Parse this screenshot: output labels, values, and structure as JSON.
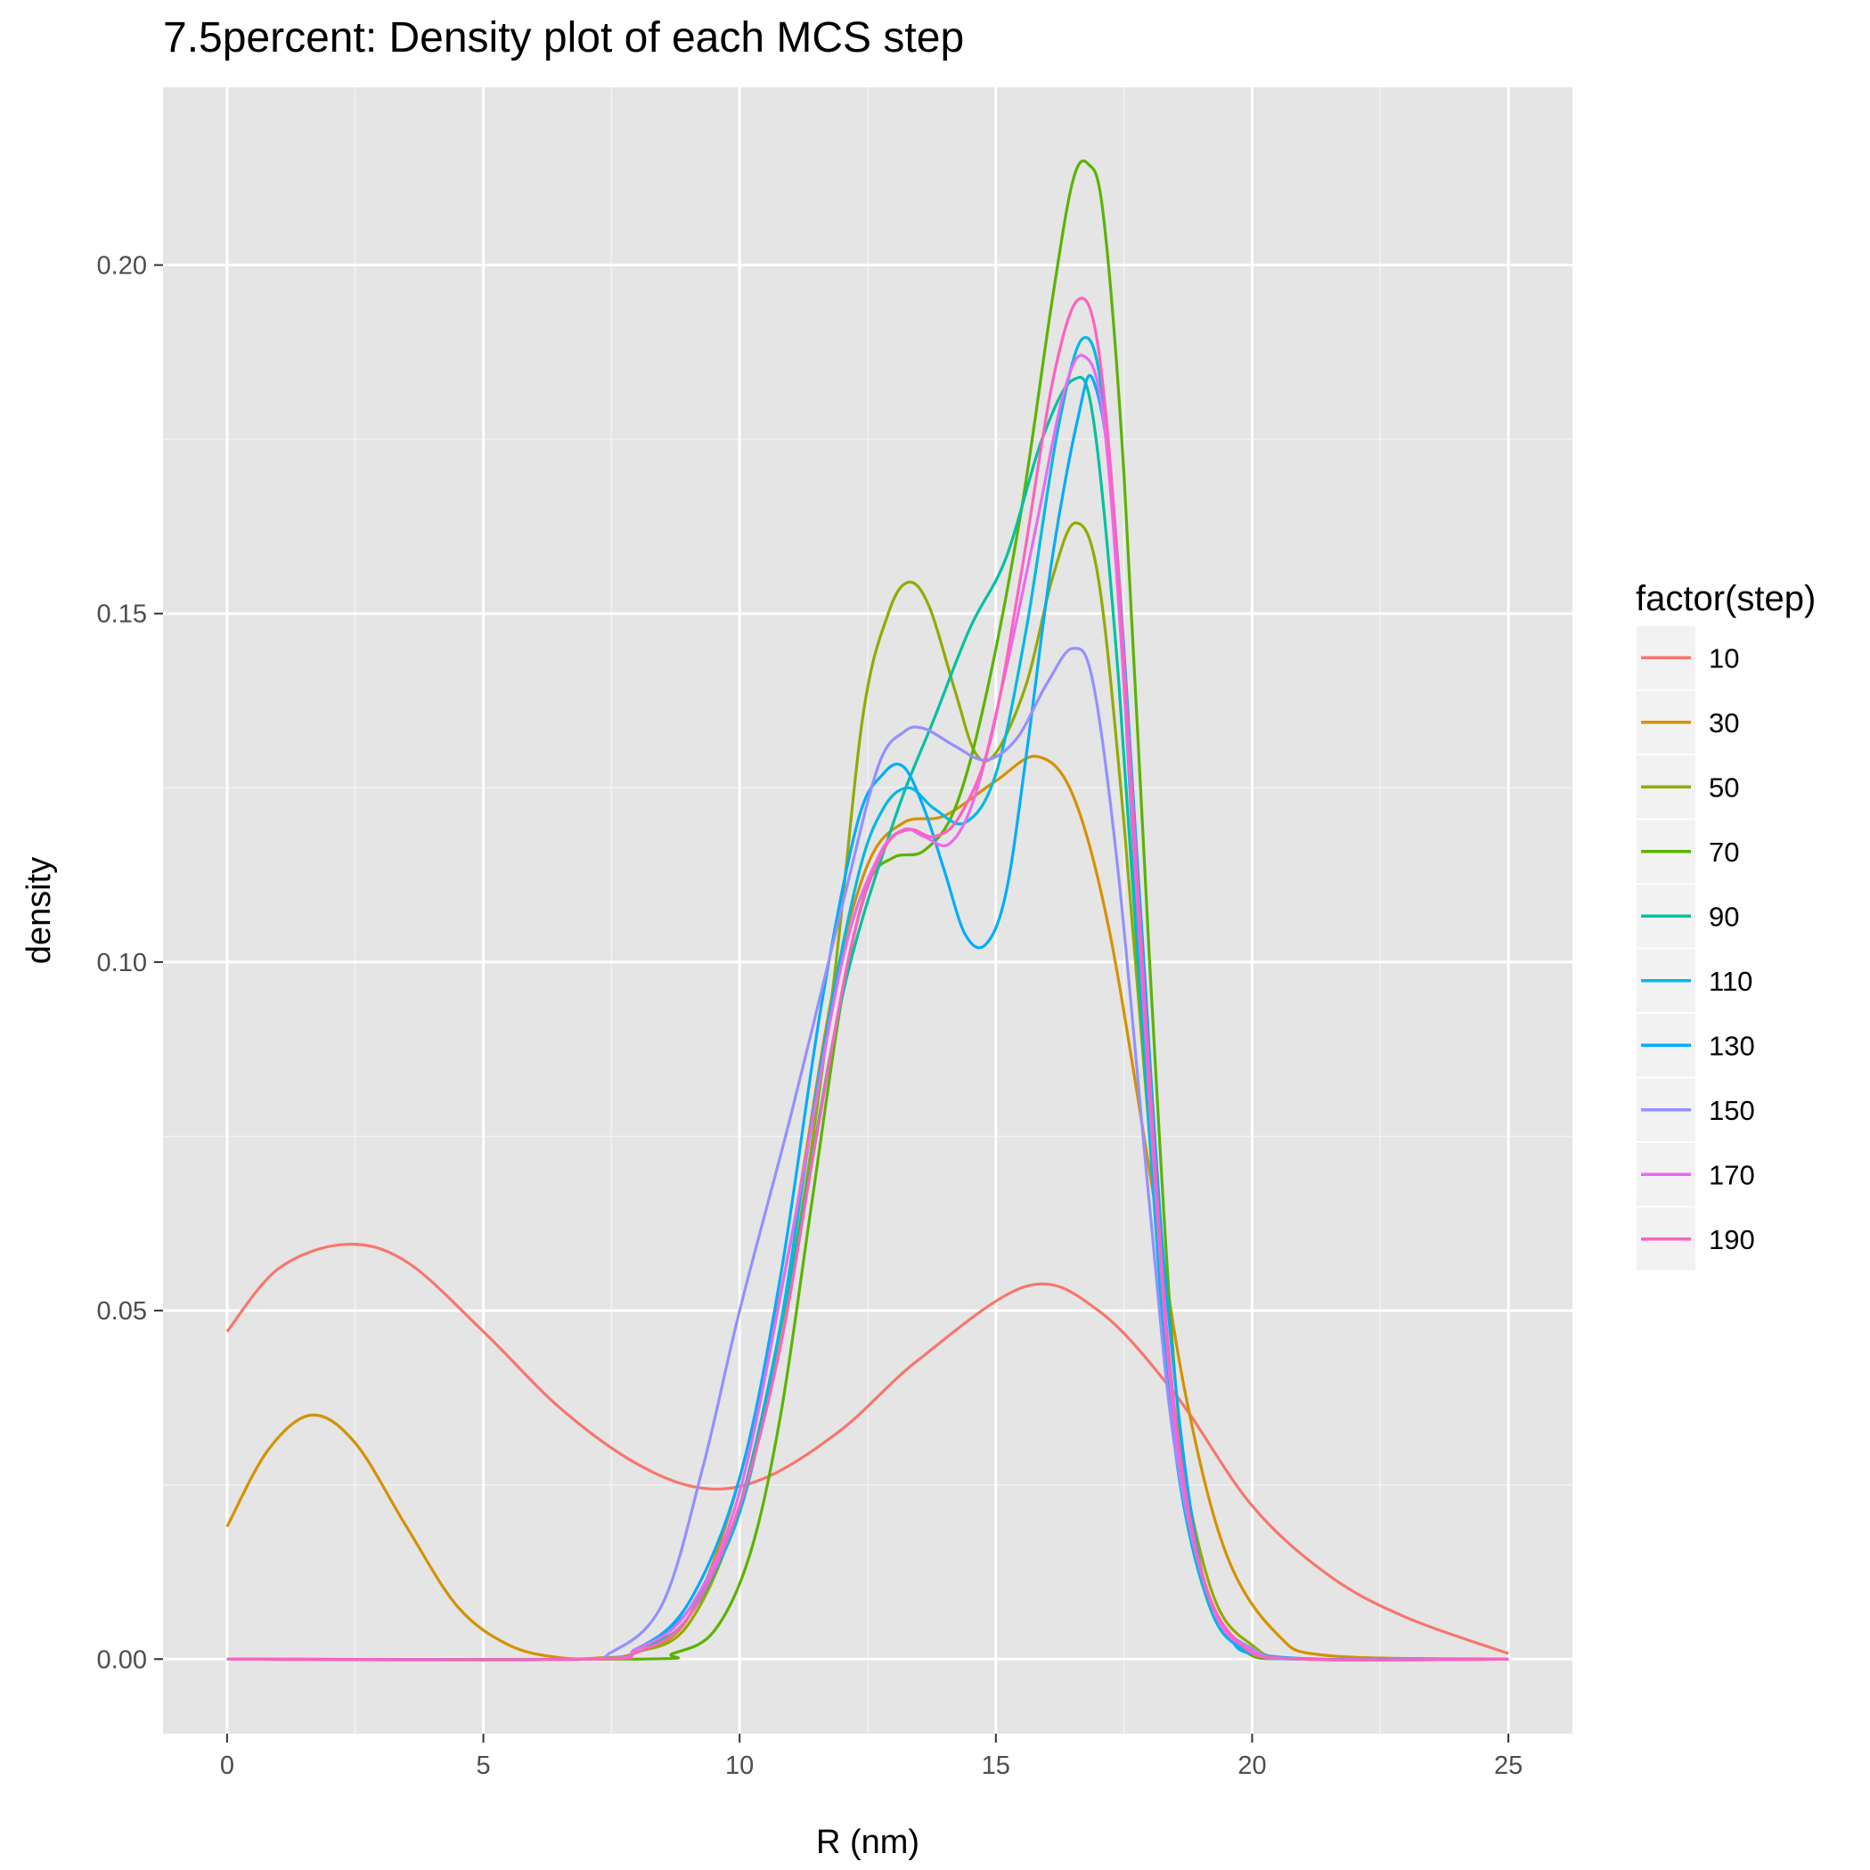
{
  "chart_data": {
    "type": "line",
    "title": "7.5percent: Density plot of each MCS step",
    "xlabel": "R (nm)",
    "ylabel": "density",
    "xlim": [
      -1.25,
      26.25
    ],
    "ylim": [
      -0.0107,
      0.2255
    ],
    "x_ticks": [
      0,
      5,
      10,
      15,
      20,
      25
    ],
    "x_tick_labels": [
      "0",
      "5",
      "10",
      "15",
      "20",
      "25"
    ],
    "y_ticks": [
      0.0,
      0.05,
      0.1,
      0.15,
      0.2
    ],
    "y_tick_labels": [
      "0.00",
      "0.05",
      "0.10",
      "0.15",
      "0.20"
    ],
    "grid": true,
    "legend": {
      "title": "factor(step)",
      "position": "right"
    },
    "series": [
      {
        "name": "10",
        "color": "#F8766D",
        "points": [
          [
            0,
            0.047
          ],
          [
            1,
            0.056
          ],
          [
            2.3,
            0.0595
          ],
          [
            3.5,
            0.057
          ],
          [
            5,
            0.047
          ],
          [
            6.5,
            0.036
          ],
          [
            8,
            0.028
          ],
          [
            9.3,
            0.0245
          ],
          [
            10.5,
            0.026
          ],
          [
            12,
            0.033
          ],
          [
            13.5,
            0.043
          ],
          [
            15.6,
            0.0535
          ],
          [
            17,
            0.05
          ],
          [
            18.5,
            0.038
          ],
          [
            20,
            0.022
          ],
          [
            21.5,
            0.012
          ],
          [
            23,
            0.006
          ],
          [
            25,
            0.0008
          ]
        ]
      },
      {
        "name": "30",
        "color": "#D39200",
        "points": [
          [
            0,
            0.019
          ],
          [
            0.8,
            0.03
          ],
          [
            1.65,
            0.035
          ],
          [
            2.5,
            0.031
          ],
          [
            3.5,
            0.019
          ],
          [
            4.5,
            0.0075
          ],
          [
            5.5,
            0.002
          ],
          [
            6.5,
            0.0002
          ],
          [
            7.3,
            0.0002
          ],
          [
            8,
            0.001
          ],
          [
            9,
            0.006
          ],
          [
            10,
            0.026
          ],
          [
            11,
            0.06
          ],
          [
            11.8,
            0.095
          ],
          [
            12.5,
            0.114
          ],
          [
            13.2,
            0.12
          ],
          [
            14,
            0.121
          ],
          [
            15,
            0.126
          ],
          [
            15.8,
            0.1295
          ],
          [
            16.5,
            0.124
          ],
          [
            17.2,
            0.105
          ],
          [
            18,
            0.07
          ],
          [
            18.7,
            0.038
          ],
          [
            19.5,
            0.015
          ],
          [
            20.5,
            0.0035
          ],
          [
            21.5,
            0.0005
          ],
          [
            25,
            0
          ]
        ]
      },
      {
        "name": "50",
        "color": "#93AA00",
        "points": [
          [
            0,
            0
          ],
          [
            7,
            0
          ],
          [
            8,
            0.001
          ],
          [
            9,
            0.005
          ],
          [
            10,
            0.022
          ],
          [
            11,
            0.055
          ],
          [
            11.8,
            0.095
          ],
          [
            12.4,
            0.135
          ],
          [
            12.9,
            0.15
          ],
          [
            13.3,
            0.1545
          ],
          [
            13.7,
            0.151
          ],
          [
            14.2,
            0.139
          ],
          [
            14.6,
            0.13
          ],
          [
            15,
            0.13
          ],
          [
            15.6,
            0.14
          ],
          [
            16.1,
            0.155
          ],
          [
            16.55,
            0.163
          ],
          [
            17,
            0.155
          ],
          [
            17.5,
            0.12
          ],
          [
            18,
            0.075
          ],
          [
            18.5,
            0.035
          ],
          [
            19.2,
            0.01
          ],
          [
            20,
            0.002
          ],
          [
            21,
            0
          ],
          [
            25,
            0
          ]
        ]
      },
      {
        "name": "70",
        "color": "#5BB300",
        "points": [
          [
            0,
            0
          ],
          [
            8,
            0
          ],
          [
            8.7,
            0.0008
          ],
          [
            9.5,
            0.004
          ],
          [
            10.2,
            0.015
          ],
          [
            10.8,
            0.035
          ],
          [
            11.4,
            0.065
          ],
          [
            12,
            0.095
          ],
          [
            12.5,
            0.111
          ],
          [
            13,
            0.115
          ],
          [
            13.6,
            0.116
          ],
          [
            14.2,
            0.122
          ],
          [
            14.8,
            0.138
          ],
          [
            15.5,
            0.165
          ],
          [
            16.1,
            0.195
          ],
          [
            16.5,
            0.212
          ],
          [
            16.8,
            0.2145
          ],
          [
            17.1,
            0.207
          ],
          [
            17.5,
            0.17
          ],
          [
            18,
            0.1
          ],
          [
            18.5,
            0.04
          ],
          [
            19,
            0.012
          ],
          [
            19.8,
            0.0015
          ],
          [
            21,
            0
          ],
          [
            25,
            0
          ]
        ]
      },
      {
        "name": "90",
        "color": "#00C19F",
        "points": [
          [
            0,
            0
          ],
          [
            7,
            0
          ],
          [
            8,
            0.0015
          ],
          [
            9,
            0.006
          ],
          [
            10,
            0.022
          ],
          [
            11,
            0.055
          ],
          [
            12,
            0.095
          ],
          [
            13,
            0.12
          ],
          [
            13.8,
            0.135
          ],
          [
            14.5,
            0.148
          ],
          [
            15.2,
            0.158
          ],
          [
            15.9,
            0.175
          ],
          [
            16.5,
            0.1835
          ],
          [
            16.9,
            0.178
          ],
          [
            17.4,
            0.14
          ],
          [
            18,
            0.075
          ],
          [
            18.5,
            0.03
          ],
          [
            19.2,
            0.007
          ],
          [
            20,
            0.001
          ],
          [
            21,
            0
          ],
          [
            25,
            0
          ]
        ]
      },
      {
        "name": "110",
        "color": "#00B9E3",
        "points": [
          [
            0,
            0
          ],
          [
            7,
            0
          ],
          [
            8,
            0.0015
          ],
          [
            9,
            0.007
          ],
          [
            10,
            0.021
          ],
          [
            10.8,
            0.048
          ],
          [
            11.6,
            0.086
          ],
          [
            12.3,
            0.112
          ],
          [
            12.8,
            0.122
          ],
          [
            13.3,
            0.125
          ],
          [
            13.8,
            0.122
          ],
          [
            14.4,
            0.12
          ],
          [
            15,
            0.127
          ],
          [
            15.6,
            0.148
          ],
          [
            16.2,
            0.176
          ],
          [
            16.7,
            0.1895
          ],
          [
            17.1,
            0.18
          ],
          [
            17.5,
            0.14
          ],
          [
            18,
            0.075
          ],
          [
            18.5,
            0.03
          ],
          [
            19.2,
            0.007
          ],
          [
            20,
            0.001
          ],
          [
            21,
            0
          ],
          [
            25,
            0
          ]
        ]
      },
      {
        "name": "130",
        "color": "#00ADFA",
        "points": [
          [
            0,
            0
          ],
          [
            7,
            0
          ],
          [
            8,
            0.0015
          ],
          [
            9,
            0.008
          ],
          [
            10,
            0.026
          ],
          [
            10.8,
            0.055
          ],
          [
            11.6,
            0.094
          ],
          [
            12.3,
            0.12
          ],
          [
            12.8,
            0.127
          ],
          [
            13.2,
            0.128
          ],
          [
            13.6,
            0.122
          ],
          [
            14,
            0.113
          ],
          [
            14.4,
            0.104
          ],
          [
            14.8,
            0.1025
          ],
          [
            15.2,
            0.11
          ],
          [
            15.6,
            0.13
          ],
          [
            16.1,
            0.158
          ],
          [
            16.6,
            0.178
          ],
          [
            16.9,
            0.1835
          ],
          [
            17.3,
            0.165
          ],
          [
            17.8,
            0.11
          ],
          [
            18.3,
            0.055
          ],
          [
            18.9,
            0.017
          ],
          [
            19.5,
            0.004
          ],
          [
            20.5,
            0.0003
          ],
          [
            25,
            0
          ]
        ]
      },
      {
        "name": "150",
        "color": "#9590FF",
        "points": [
          [
            0,
            0
          ],
          [
            6.5,
            0
          ],
          [
            7.5,
            0.001
          ],
          [
            8.5,
            0.008
          ],
          [
            9.3,
            0.028
          ],
          [
            10,
            0.05
          ],
          [
            11,
            0.078
          ],
          [
            12,
            0.108
          ],
          [
            12.7,
            0.128
          ],
          [
            13.2,
            0.133
          ],
          [
            13.6,
            0.1335
          ],
          [
            14.2,
            0.131
          ],
          [
            14.8,
            0.129
          ],
          [
            15.4,
            0.132
          ],
          [
            16,
            0.14
          ],
          [
            16.5,
            0.145
          ],
          [
            16.9,
            0.14
          ],
          [
            17.4,
            0.112
          ],
          [
            18,
            0.065
          ],
          [
            18.5,
            0.03
          ],
          [
            19.2,
            0.008
          ],
          [
            20,
            0.0015
          ],
          [
            21,
            0
          ],
          [
            25,
            0
          ]
        ]
      },
      {
        "name": "170",
        "color": "#E76BF3",
        "points": [
          [
            0,
            0
          ],
          [
            7,
            0
          ],
          [
            8,
            0.0015
          ],
          [
            9,
            0.007
          ],
          [
            10,
            0.024
          ],
          [
            11,
            0.06
          ],
          [
            12,
            0.1
          ],
          [
            12.7,
            0.115
          ],
          [
            13.2,
            0.119
          ],
          [
            13.6,
            0.118
          ],
          [
            14.1,
            0.117
          ],
          [
            14.6,
            0.124
          ],
          [
            15.2,
            0.142
          ],
          [
            15.8,
            0.163
          ],
          [
            16.3,
            0.181
          ],
          [
            16.7,
            0.187
          ],
          [
            17.1,
            0.178
          ],
          [
            17.5,
            0.14
          ],
          [
            18,
            0.08
          ],
          [
            18.5,
            0.033
          ],
          [
            19.2,
            0.008
          ],
          [
            20,
            0.0012
          ],
          [
            21,
            0
          ],
          [
            25,
            0
          ]
        ]
      },
      {
        "name": "190",
        "color": "#FF62BC",
        "points": [
          [
            0,
            0
          ],
          [
            7,
            0
          ],
          [
            8,
            0.001
          ],
          [
            9,
            0.006
          ],
          [
            10,
            0.022
          ],
          [
            10.8,
            0.045
          ],
          [
            11.5,
            0.075
          ],
          [
            12.2,
            0.103
          ],
          [
            12.8,
            0.116
          ],
          [
            13.3,
            0.119
          ],
          [
            13.8,
            0.118
          ],
          [
            14.3,
            0.121
          ],
          [
            14.9,
            0.132
          ],
          [
            15.5,
            0.156
          ],
          [
            16.1,
            0.183
          ],
          [
            16.6,
            0.195
          ],
          [
            17,
            0.188
          ],
          [
            17.4,
            0.155
          ],
          [
            17.9,
            0.095
          ],
          [
            18.4,
            0.042
          ],
          [
            19,
            0.013
          ],
          [
            19.8,
            0.002
          ],
          [
            21,
            0
          ],
          [
            25,
            0
          ]
        ]
      }
    ]
  }
}
